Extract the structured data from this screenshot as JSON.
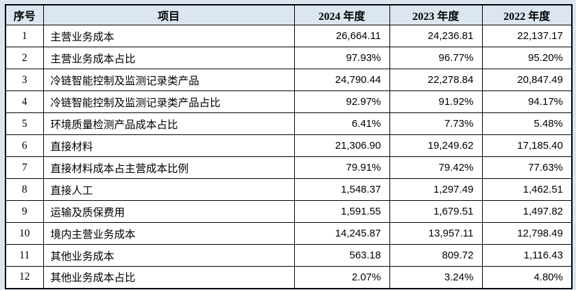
{
  "colors": {
    "page_background": "#dce6f1",
    "header_background": "#dce6f1",
    "row_background": "#ffffff",
    "border": "#000000",
    "text": "#000000"
  },
  "table": {
    "columns": [
      {
        "key": "no",
        "label": "序号"
      },
      {
        "key": "item",
        "label": "项目"
      },
      {
        "key": "y2024",
        "label": "2024 年度"
      },
      {
        "key": "y2023",
        "label": "2023 年度"
      },
      {
        "key": "y2022",
        "label": "2022 年度"
      }
    ],
    "rows": [
      {
        "no": "1",
        "item": "主营业务成本",
        "y2024": "26,664.11",
        "y2023": "24,236.81",
        "y2022": "22,137.17"
      },
      {
        "no": "2",
        "item": "主营业务成本占比",
        "y2024": "97.93%",
        "y2023": "96.77%",
        "y2022": "95.20%"
      },
      {
        "no": "3",
        "item": "冷链智能控制及监测记录类产品",
        "y2024": "24,790.44",
        "y2023": "22,278.84",
        "y2022": "20,847.49"
      },
      {
        "no": "4",
        "item": "冷链智能控制及监测记录类产品占比",
        "y2024": "92.97%",
        "y2023": "91.92%",
        "y2022": "94.17%"
      },
      {
        "no": "5",
        "item": "环境质量检测产品成本占比",
        "y2024": "6.41%",
        "y2023": "7.73%",
        "y2022": "5.48%"
      },
      {
        "no": "6",
        "item": "直接材料",
        "y2024": "21,306.90",
        "y2023": "19,249.62",
        "y2022": "17,185.40"
      },
      {
        "no": "7",
        "item": "直接材料成本占主营成本比例",
        "y2024": "79.91%",
        "y2023": "79.42%",
        "y2022": "77.63%"
      },
      {
        "no": "8",
        "item": "直接人工",
        "y2024": "1,548.37",
        "y2023": "1,297.49",
        "y2022": "1,462.51"
      },
      {
        "no": "9",
        "item": "运输及质保费用",
        "y2024": "1,591.55",
        "y2023": "1,679.51",
        "y2022": "1,497.82"
      },
      {
        "no": "10",
        "item": "境内主营业务成本",
        "y2024": "14,245.87",
        "y2023": "13,957.11",
        "y2022": "12,798.49"
      },
      {
        "no": "11",
        "item": "其他业务成本",
        "y2024": "563.18",
        "y2023": "809.72",
        "y2022": "1,116.43"
      },
      {
        "no": "12",
        "item": "其他业务成本占比",
        "y2024": "2.07%",
        "y2023": "3.24%",
        "y2022": "4.80%"
      }
    ]
  }
}
